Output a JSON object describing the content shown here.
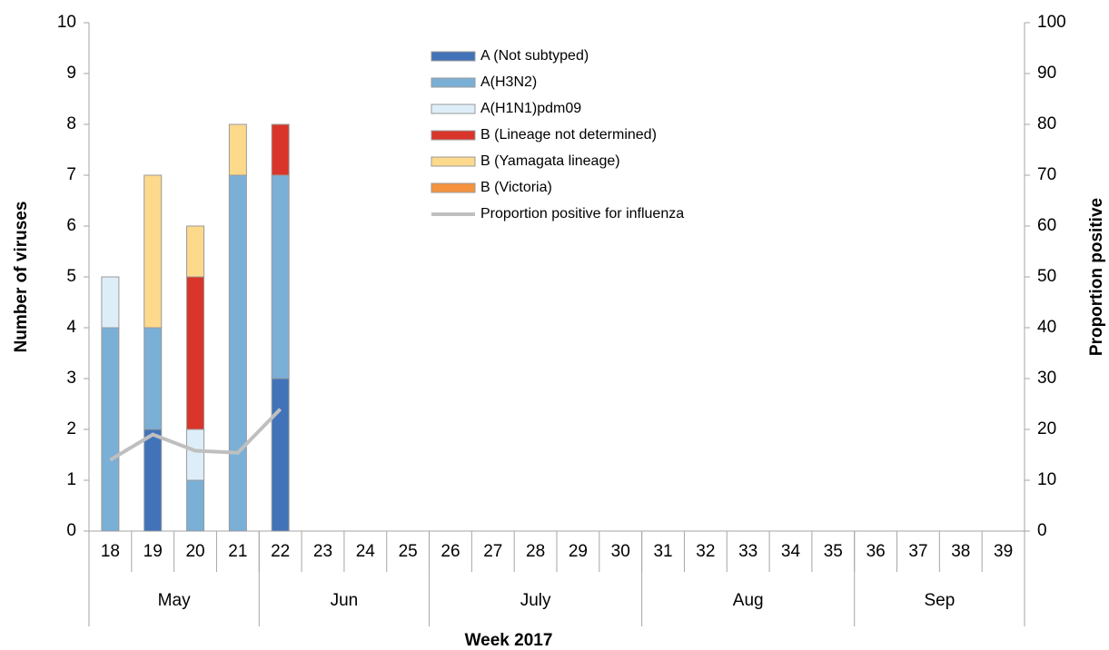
{
  "chart_data": {
    "type": "bar",
    "y_label": "Number of viruses",
    "y2_label": "Proportion positive",
    "x_label": "Week 2017",
    "categories": [
      "18",
      "19",
      "20",
      "21",
      "22",
      "23",
      "24",
      "25",
      "26",
      "27",
      "28",
      "29",
      "30",
      "31",
      "32",
      "33",
      "34",
      "35",
      "36",
      "37",
      "38",
      "39"
    ],
    "month_groups": [
      {
        "label": "May",
        "span": 4
      },
      {
        "label": "Jun",
        "span": 4
      },
      {
        "label": "July",
        "span": 5
      },
      {
        "label": "Aug",
        "span": 5
      },
      {
        "label": "Sep",
        "span": 4
      }
    ],
    "ylim": [
      0,
      10
    ],
    "yticks": [
      0,
      1,
      2,
      3,
      4,
      5,
      6,
      7,
      8,
      9,
      10
    ],
    "y2lim": [
      0,
      100
    ],
    "y2ticks": [
      0,
      10,
      20,
      30,
      40,
      50,
      60,
      70,
      80,
      90,
      100
    ],
    "stacked": true,
    "series": [
      {
        "name": "A (Not subtyped)",
        "color": "#4273b8",
        "values": [
          0,
          2,
          0,
          0,
          3,
          0,
          0,
          0,
          0,
          0,
          0,
          0,
          0,
          0,
          0,
          0,
          0,
          0,
          0,
          0,
          0,
          0
        ]
      },
      {
        "name": "A(H3N2)",
        "color": "#7aafd6",
        "values": [
          4,
          2,
          1,
          7,
          4,
          0,
          0,
          0,
          0,
          0,
          0,
          0,
          0,
          0,
          0,
          0,
          0,
          0,
          0,
          0,
          0,
          0
        ]
      },
      {
        "name": "A(H1N1)pdm09",
        "color": "#ddeef8",
        "values": [
          1,
          0,
          1,
          0,
          0,
          0,
          0,
          0,
          0,
          0,
          0,
          0,
          0,
          0,
          0,
          0,
          0,
          0,
          0,
          0,
          0,
          0
        ]
      },
      {
        "name": "B (Lineage not determined)",
        "color": "#d9352a",
        "values": [
          0,
          0,
          3,
          0,
          1,
          0,
          0,
          0,
          0,
          0,
          0,
          0,
          0,
          0,
          0,
          0,
          0,
          0,
          0,
          0,
          0,
          0
        ]
      },
      {
        "name": "B (Yamagata lineage)",
        "color": "#fdd98c",
        "values": [
          0,
          3,
          1,
          1,
          0,
          0,
          0,
          0,
          0,
          0,
          0,
          0,
          0,
          0,
          0,
          0,
          0,
          0,
          0,
          0,
          0,
          0
        ]
      },
      {
        "name": "B (Victoria)",
        "color": "#f5923e",
        "values": [
          0,
          0,
          0,
          0,
          0,
          0,
          0,
          0,
          0,
          0,
          0,
          0,
          0,
          0,
          0,
          0,
          0,
          0,
          0,
          0,
          0,
          0
        ]
      },
      {
        "name": "Proportion positive for influenza",
        "color": "#bfbfbf",
        "type": "line",
        "axis": "y2",
        "values": [
          14,
          19,
          15.8,
          15.4,
          24,
          null,
          null,
          null,
          null,
          null,
          null,
          null,
          null,
          null,
          null,
          null,
          null,
          null,
          null,
          null,
          null,
          null
        ]
      }
    ]
  }
}
